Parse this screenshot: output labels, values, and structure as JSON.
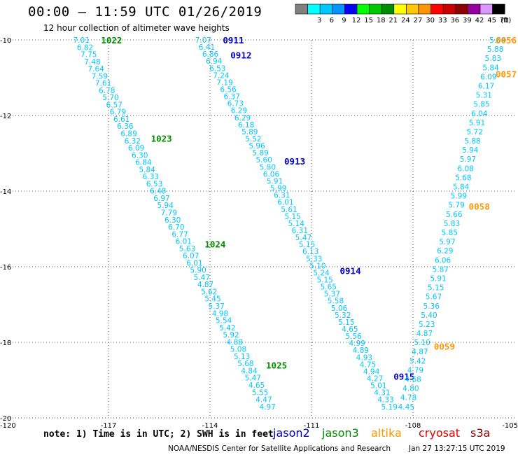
{
  "header": {
    "title": "00:00 – 11:59 UTC 01/26/2019",
    "subtitle": "12 hour collection of altimeter wave heights"
  },
  "scale": {
    "unit": "(ft)",
    "bins": [
      {
        "label": "",
        "color": "#808080"
      },
      {
        "label": "3",
        "color": "#00ffff"
      },
      {
        "label": "6",
        "color": "#00c8ff"
      },
      {
        "label": "9",
        "color": "#0096ff"
      },
      {
        "label": "12",
        "color": "#0000ff"
      },
      {
        "label": "15",
        "color": "#00ff00"
      },
      {
        "label": "18",
        "color": "#00c800"
      },
      {
        "label": "21",
        "color": "#008c00"
      },
      {
        "label": "24",
        "color": "#ffff00"
      },
      {
        "label": "27",
        "color": "#ffc800"
      },
      {
        "label": "30",
        "color": "#ff9600"
      },
      {
        "label": "33",
        "color": "#ff0000"
      },
      {
        "label": "36",
        "color": "#c80000"
      },
      {
        "label": "39",
        "color": "#8c0000"
      },
      {
        "label": "42",
        "color": "#96009c"
      },
      {
        "label": "45",
        "color": "#dc96ff"
      },
      {
        "label": "70",
        "color": "#000000"
      }
    ]
  },
  "map": {
    "lon_range": [
      -120,
      -105
    ],
    "lat_range": [
      -20,
      -10
    ],
    "x_ticks": [
      {
        "v": -120,
        "label": "-120"
      },
      {
        "v": -117,
        "label": "-117"
      },
      {
        "v": -114,
        "label": "-114"
      },
      {
        "v": -111,
        "label": "-111"
      },
      {
        "v": -108,
        "label": "-108"
      },
      {
        "v": -105,
        "label": "-105"
      }
    ],
    "y_ticks": [
      {
        "v": -10,
        "label": "-10"
      },
      {
        "v": -12,
        "label": "-12"
      },
      {
        "v": -14,
        "label": "-14"
      },
      {
        "v": -16,
        "label": "-16"
      },
      {
        "v": -18,
        "label": "-18"
      },
      {
        "v": -20,
        "label": "-20"
      }
    ],
    "grid": "dotted"
  },
  "chart_data": {
    "type": "scatter",
    "tracks": [
      {
        "satellite": "jason3",
        "lon_start": -117.8,
        "lat_start": -10.0,
        "lon_end": -112.3,
        "lat_end": -19.7,
        "values": [
          "7.01",
          "6.82",
          "7.75",
          "7.48",
          "7.64",
          "7.59",
          "7.61",
          "6.78",
          "5.70",
          "6.57",
          "6.79",
          "6.61",
          "6.36",
          "6.89",
          "6.32",
          "6.09",
          "6.30",
          "6.84",
          "5.84",
          "6.33",
          "6.53",
          "6.48",
          "6.97",
          "5.94",
          "7.79",
          "6.30",
          "6.70",
          "6.77",
          "6.01",
          "5.63",
          "6.07",
          "6.01",
          "5.90",
          "5.47",
          "4.87",
          "5.62",
          "5.45",
          "5.37",
          "4.98",
          "5.54",
          "5.42",
          "5.92",
          "4.88",
          "5.08",
          "5.13",
          "5.68",
          "4.84",
          "5.47",
          "4.65",
          "5.55",
          "4.47",
          "4.97"
        ],
        "time_labels": [
          {
            "text": "1022",
            "lat": -10.0
          },
          {
            "text": "1023",
            "lat": -12.6
          },
          {
            "text": "1024",
            "lat": -15.4
          },
          {
            "text": "1025",
            "lat": -18.6
          }
        ]
      },
      {
        "satellite": "jason2",
        "lon_start": -114.2,
        "lat_start": -10.0,
        "lon_end": -108.7,
        "lat_end": -19.7,
        "values": [
          "7.07",
          "6.41",
          "6.86",
          "6.94",
          "6.53",
          "7.24",
          "7.19",
          "6.56",
          "6.37",
          "6.73",
          "6.29",
          "6.29",
          "6.18",
          "5.89",
          "5.52",
          "5.96",
          "5.89",
          "5.60",
          "5.80",
          "6.06",
          "5.91",
          "5.99",
          "6.31",
          "6.01",
          "5.61",
          "5.15",
          "5.14",
          "6.31",
          "5.47",
          "5.15",
          "6.13",
          "5.33",
          "5.10",
          "5.24",
          "5.15",
          "5.65",
          "5.37",
          "5.58",
          "5.06",
          "5.32",
          "5.15",
          "4.65",
          "5.56",
          "4.99",
          "4.89",
          "4.93",
          "4.75",
          "4.94",
          "4.27",
          "5.01",
          "4.31",
          "4.33",
          "5.19"
        ],
        "time_labels": [
          {
            "text": "0911",
            "lat": -10.0
          },
          {
            "text": "0912",
            "lat": -10.4
          },
          {
            "text": "0913",
            "lat": -13.2
          },
          {
            "text": "0914",
            "lat": -16.1
          },
          {
            "text": "0915",
            "lat": -18.9
          }
        ]
      },
      {
        "satellite": "altika",
        "lon_start": -105.5,
        "lat_start": -10.0,
        "lon_end": -108.2,
        "lat_end": -19.7,
        "values": [
          "5.64",
          "5.88",
          "5.83",
          "5.84",
          "6.09",
          "6.17",
          "5.31",
          "5.85",
          "6.04",
          "5.91",
          "5.72",
          "5.88",
          "5.94",
          "5.97",
          "6.08",
          "5.68",
          "5.84",
          "5.99",
          "5.79",
          "5.66",
          "5.83",
          "5.85",
          "5.97",
          "6.29",
          "6.06",
          "5.87",
          "5.91",
          "5.15",
          "5.67",
          "5.36",
          "5.40",
          "5.23",
          "4.87",
          "5.10",
          "4.87",
          "5.42",
          "4.79",
          "4.68",
          "4.80",
          "4.78",
          "4.45"
        ],
        "time_labels": [
          {
            "text": "0056",
            "lat": -10.0
          },
          {
            "text": "0057",
            "lat": -10.9
          },
          {
            "text": "0058",
            "lat": -14.4
          },
          {
            "text": "0059",
            "lat": -18.1
          }
        ]
      }
    ]
  },
  "footer": {
    "note": "note: 1) Time is in UTC; 2) SWH is in feet",
    "satellites": [
      {
        "name": "jason2",
        "color": "#0000c8"
      },
      {
        "name": "jason3",
        "color": "#008c00"
      },
      {
        "name": "altika",
        "color": "#ff9600"
      },
      {
        "name": "cryosat",
        "color": "#e00000"
      },
      {
        "name": "s3a",
        "color": "#8c0000"
      }
    ],
    "credit": "NOAA/NESDIS Center for Satellite Applications and Research",
    "timestamp": "Jan 27 13:27:15 UTC 2019"
  },
  "colors": {
    "value_text": "#00c8ff",
    "label_jason2": "#0000c8",
    "label_jason3": "#008c00",
    "label_altika": "#ff9600"
  }
}
